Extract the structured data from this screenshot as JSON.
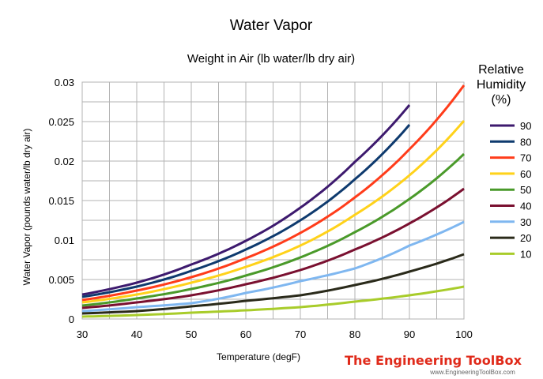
{
  "chart_data": {
    "type": "line",
    "title": "Water Vapor",
    "subtitle": "Weight in Air (lb water/lb dry air)",
    "xlabel": "Temperature (degF)",
    "ylabel": "Water Vapor (pounds water/lb dry air)",
    "xlim": [
      30,
      100
    ],
    "ylim": [
      0,
      0.03
    ],
    "x_ticks": [
      "30",
      "40",
      "50",
      "60",
      "70",
      "80",
      "90",
      "100"
    ],
    "y_ticks": [
      "0",
      "0.005",
      "0.01",
      "0.015",
      "0.02",
      "0.025",
      "0.03"
    ],
    "grid": true,
    "legend_title": "Relative\nHumidity\n(%)",
    "legend_position": "right",
    "x": [
      30,
      40,
      50,
      60,
      70,
      80,
      90,
      100
    ],
    "series": [
      {
        "name": "90",
        "color": "#3d1a6e",
        "values": [
          0.0031,
          0.0046,
          0.0069,
          0.0099,
          0.0141,
          0.0199,
          0.0271,
          null
        ]
      },
      {
        "name": "80",
        "color": "#0e3a6e",
        "values": [
          0.0028,
          0.0041,
          0.0061,
          0.0088,
          0.0125,
          0.0177,
          0.0246,
          null
        ]
      },
      {
        "name": "70",
        "color": "#ff3c1a",
        "values": [
          0.0024,
          0.0036,
          0.0053,
          0.0077,
          0.0109,
          0.0154,
          0.0215,
          0.0296
        ]
      },
      {
        "name": "60",
        "color": "#ffd21a",
        "values": [
          0.0021,
          0.0031,
          0.0046,
          0.0066,
          0.0093,
          0.0132,
          0.0182,
          0.0251
        ]
      },
      {
        "name": "50",
        "color": "#4a9a2a",
        "values": [
          0.0017,
          0.0026,
          0.0038,
          0.0055,
          0.0078,
          0.011,
          0.0152,
          0.0209
        ]
      },
      {
        "name": "40",
        "color": "#7a1030",
        "values": [
          0.0014,
          0.0021,
          0.003,
          0.0044,
          0.0062,
          0.0088,
          0.0121,
          0.0165
        ]
      },
      {
        "name": "30",
        "color": "#7fb7f0",
        "values": [
          0.001,
          0.0015,
          0.002,
          0.0033,
          0.0048,
          0.0064,
          0.0093,
          0.0123
        ]
      },
      {
        "name": "20",
        "color": "#2a2a1a",
        "values": [
          0.0007,
          0.001,
          0.0016,
          0.0023,
          0.003,
          0.0043,
          0.006,
          0.0082
        ]
      },
      {
        "name": "10",
        "color": "#a8cc2a",
        "values": [
          0.0003,
          0.0005,
          0.0008,
          0.0011,
          0.0015,
          0.0022,
          0.003,
          0.0041
        ]
      }
    ]
  },
  "branding": {
    "logo_text": "The Engineering ToolBox",
    "url": "www.EngineeringToolBox.com",
    "logo_color": "#e02a1a"
  }
}
